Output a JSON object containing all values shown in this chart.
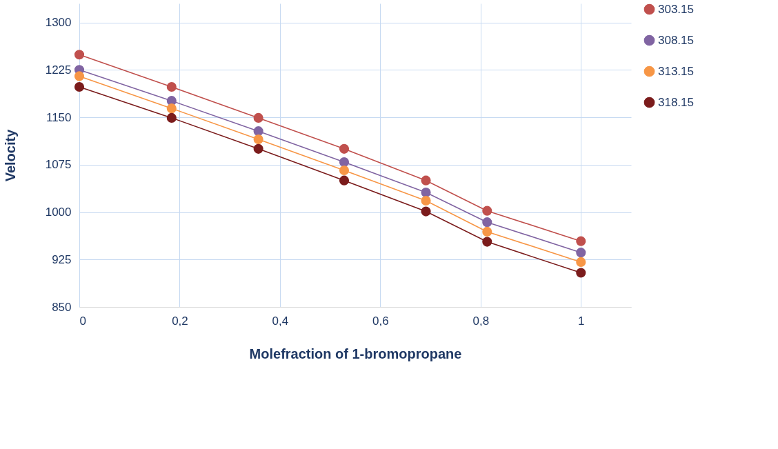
{
  "chart_data": {
    "type": "line",
    "xlabel": "Molefraction of 1-bromopropane",
    "ylabel": "Velocity",
    "x": [
      0,
      0.184,
      0.357,
      0.528,
      0.691,
      0.813,
      1
    ],
    "series": [
      {
        "name": "303.15",
        "color": "#c0504d",
        "values": [
          1249,
          1198,
          1149,
          1100,
          1050,
          1002,
          954
        ]
      },
      {
        "name": "308.15",
        "color": "#8064a2",
        "values": [
          1225,
          1176,
          1128,
          1079,
          1031,
          984,
          936
        ]
      },
      {
        "name": "313.15",
        "color": "#f79646",
        "values": [
          1215,
          1164,
          1115,
          1066,
          1018,
          969,
          921
        ]
      },
      {
        "name": "318.15",
        "color": "#7b1c1c",
        "values": [
          1198,
          1149,
          1100,
          1050,
          1001,
          953,
          904
        ]
      }
    ],
    "xlim": [
      0,
      1.1
    ],
    "xticks": [
      0,
      {
        "value": 0.2,
        "label": "0,2"
      },
      {
        "value": 0.4,
        "label": "0,4"
      },
      {
        "value": 0.6,
        "label": "0,6"
      },
      {
        "value": 0.8,
        "label": "0,8"
      },
      1
    ],
    "ylim": [
      850,
      1330
    ],
    "yticks": [
      850,
      925,
      1000,
      1075,
      1150,
      1225,
      1300
    ],
    "grid": true,
    "legend": "top right",
    "marker": "circle",
    "line_style": "solid"
  }
}
